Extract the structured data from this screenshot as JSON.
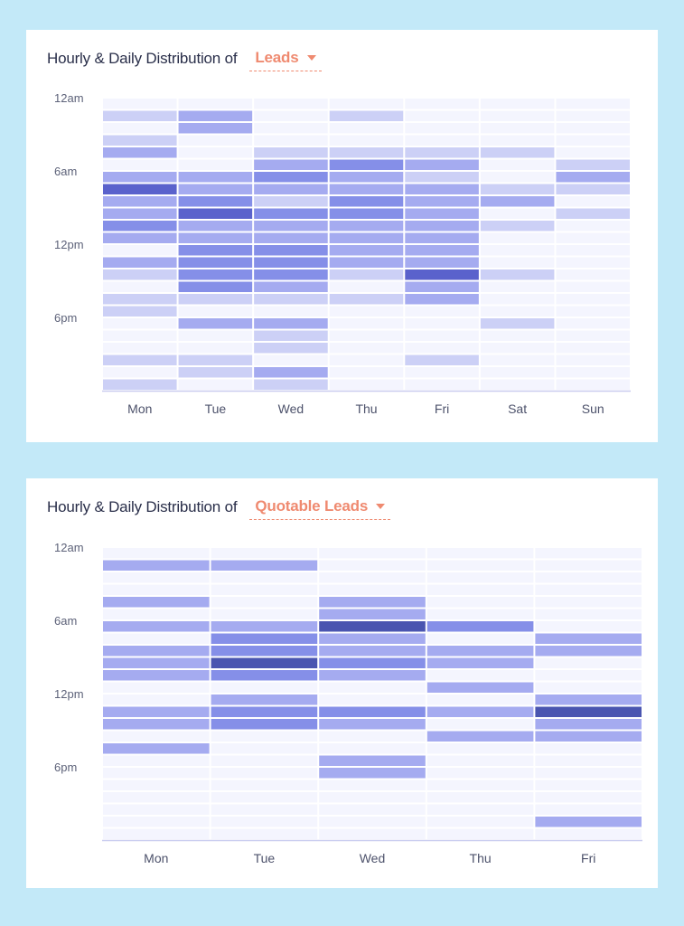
{
  "charts": [
    {
      "title": "Hourly & Daily Distribution of",
      "metric_label": "Leads",
      "chart_data": {
        "type": "heatmap",
        "days": [
          "Mon",
          "Tue",
          "Wed",
          "Thu",
          "Fri",
          "Sat",
          "Sun"
        ],
        "hour_labels": [
          {
            "hour": 0,
            "label": "12am"
          },
          {
            "hour": 6,
            "label": "6am"
          },
          {
            "hour": 12,
            "label": "12pm"
          },
          {
            "hour": 18,
            "label": "6pm"
          }
        ],
        "color_scale": [
          "#f4f5fe",
          "#ccd0f6",
          "#a5abf0",
          "#858fe8",
          "#5a62cc"
        ],
        "levels": [
          [
            0,
            1,
            0,
            1,
            2,
            0,
            2,
            4,
            2,
            2,
            3,
            2,
            0,
            2,
            1,
            0,
            1,
            1,
            0,
            0,
            0,
            1,
            0,
            1
          ],
          [
            0,
            2,
            2,
            0,
            0,
            0,
            2,
            2,
            3,
            4,
            2,
            2,
            3,
            3,
            3,
            3,
            1,
            0,
            2,
            0,
            0,
            1,
            1,
            0
          ],
          [
            0,
            0,
            0,
            0,
            1,
            2,
            3,
            2,
            1,
            3,
            2,
            2,
            3,
            3,
            3,
            2,
            1,
            0,
            2,
            1,
            1,
            0,
            2,
            1
          ],
          [
            0,
            1,
            0,
            0,
            1,
            3,
            2,
            2,
            3,
            3,
            2,
            2,
            2,
            2,
            1,
            0,
            1,
            0,
            0,
            0,
            0,
            0,
            0,
            0
          ],
          [
            0,
            0,
            0,
            0,
            1,
            2,
            1,
            2,
            2,
            2,
            2,
            2,
            2,
            2,
            4,
            2,
            2,
            0,
            0,
            0,
            0,
            1,
            0,
            0
          ],
          [
            0,
            0,
            0,
            0,
            1,
            0,
            0,
            1,
            2,
            0,
            1,
            0,
            0,
            0,
            1,
            0,
            0,
            0,
            1,
            0,
            0,
            0,
            0,
            0
          ],
          [
            0,
            0,
            0,
            0,
            0,
            1,
            2,
            1,
            0,
            1,
            0,
            0,
            0,
            0,
            0,
            0,
            0,
            0,
            0,
            0,
            0,
            0,
            0,
            0
          ]
        ]
      }
    },
    {
      "title": "Hourly & Daily Distribution of",
      "metric_label": "Quotable Leads",
      "chart_data": {
        "type": "heatmap",
        "days": [
          "Mon",
          "Tue",
          "Wed",
          "Thu",
          "Fri"
        ],
        "hour_labels": [
          {
            "hour": 0,
            "label": "12am"
          },
          {
            "hour": 6,
            "label": "6am"
          },
          {
            "hour": 12,
            "label": "12pm"
          },
          {
            "hour": 18,
            "label": "6pm"
          }
        ],
        "color_scale": [
          "#f4f5fe",
          "#ccd0f6",
          "#a5abf0",
          "#858fe8",
          "#4a55b0"
        ],
        "levels": [
          [
            0,
            2,
            0,
            0,
            2,
            0,
            2,
            0,
            2,
            2,
            2,
            0,
            0,
            2,
            2,
            0,
            2,
            0,
            0,
            0,
            0,
            0,
            0,
            0
          ],
          [
            0,
            2,
            0,
            0,
            0,
            0,
            2,
            3,
            3,
            4,
            3,
            0,
            2,
            3,
            3,
            0,
            0,
            0,
            0,
            0,
            0,
            0,
            0,
            0
          ],
          [
            0,
            0,
            0,
            0,
            2,
            2,
            4,
            2,
            2,
            3,
            2,
            0,
            0,
            3,
            2,
            0,
            0,
            2,
            2,
            0,
            0,
            0,
            0,
            0
          ],
          [
            0,
            0,
            0,
            0,
            0,
            0,
            3,
            0,
            2,
            2,
            0,
            2,
            0,
            2,
            0,
            2,
            0,
            0,
            0,
            0,
            0,
            0,
            0,
            0
          ],
          [
            0,
            0,
            0,
            0,
            0,
            0,
            0,
            2,
            2,
            0,
            0,
            0,
            2,
            4,
            2,
            2,
            0,
            0,
            0,
            0,
            0,
            0,
            2,
            0
          ]
        ]
      }
    }
  ]
}
